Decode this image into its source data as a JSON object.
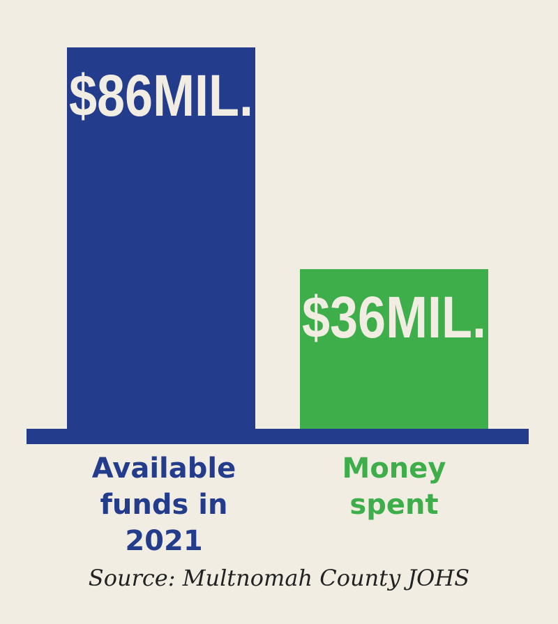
{
  "colors": {
    "background": "#f1ede2",
    "baseline": "#233c8c",
    "label_text": "#f1ede2"
  },
  "chart_data": {
    "type": "bar",
    "categories": [
      "Available funds in 2021",
      "Money spent"
    ],
    "category_lines": [
      [
        "Available",
        "funds in",
        "2021"
      ],
      [
        "Money",
        "spent"
      ]
    ],
    "values": [
      86,
      36
    ],
    "value_labels": [
      "$86MIL.",
      "$36MIL."
    ],
    "bar_colors": [
      "#233c8c",
      "#3dae4a"
    ],
    "ylim": [
      0,
      86
    ],
    "grid": false,
    "source": "Source: Multnomah County JOHS"
  }
}
